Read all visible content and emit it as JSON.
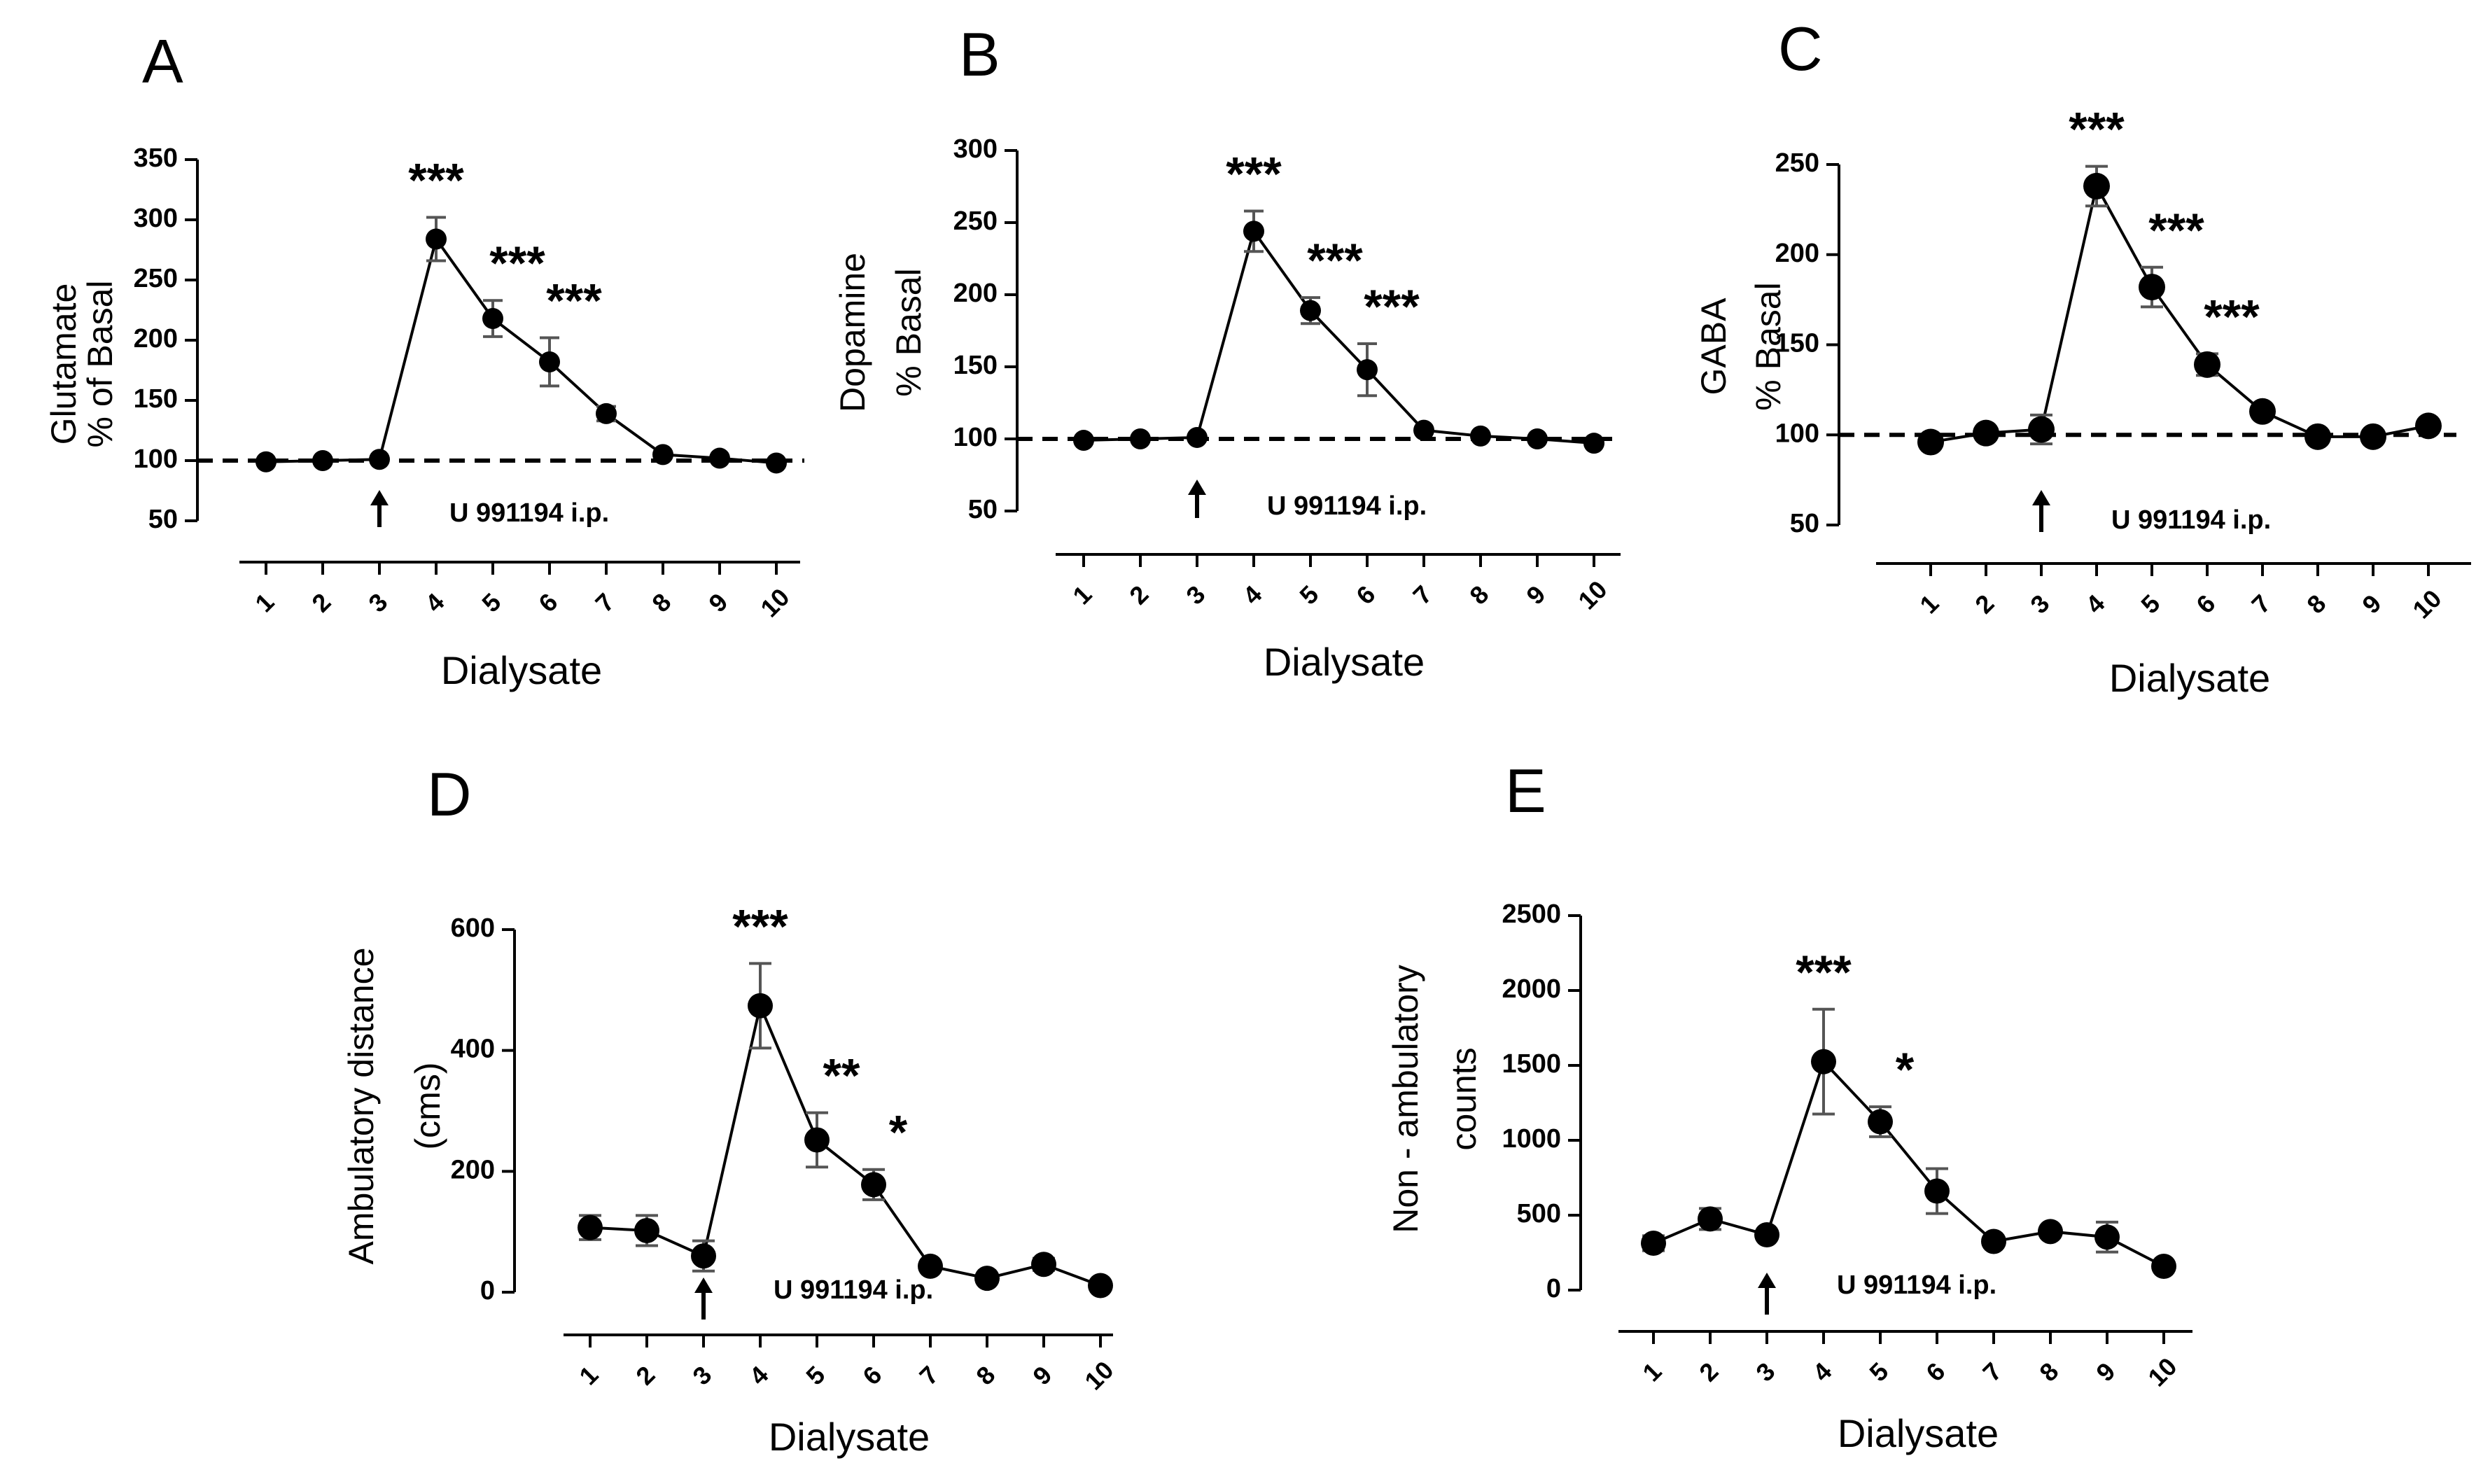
{
  "chart_data": [
    {
      "panel": "A",
      "type": "line",
      "ylabel_lines": [
        "Glutamate",
        "% of  Basal"
      ],
      "xlabel": "Dialysate",
      "categories": [
        "1",
        "2",
        "3",
        "4",
        "5",
        "6",
        "7",
        "8",
        "9",
        "10"
      ],
      "values": [
        99,
        100,
        101,
        284,
        218,
        182,
        139,
        105,
        102,
        98
      ],
      "errors": [
        0,
        0,
        0,
        18,
        15,
        20,
        6,
        0,
        0,
        0
      ],
      "ylim": [
        50,
        350
      ],
      "yticks": [
        "50",
        "100",
        "150",
        "200",
        "250",
        "300",
        "350"
      ],
      "baseline": 100,
      "significance": [
        {
          "x": 4,
          "label": "***"
        },
        {
          "x": 5,
          "label": "***"
        },
        {
          "x": 6,
          "label": "***"
        }
      ],
      "arrow_at": 3,
      "annotation": "U 991194 i.p."
    },
    {
      "panel": "B",
      "type": "line",
      "ylabel_lines": [
        "Dopamine",
        "% Basal"
      ],
      "xlabel": "Dialysate",
      "categories": [
        "1",
        "2",
        "3",
        "4",
        "5",
        "6",
        "7",
        "8",
        "9",
        "10"
      ],
      "values": [
        99,
        100,
        101,
        244,
        189,
        148,
        106,
        102,
        100,
        97
      ],
      "errors": [
        0,
        0,
        0,
        14,
        9,
        18,
        0,
        0,
        0,
        0
      ],
      "ylim": [
        50,
        300
      ],
      "yticks": [
        "50",
        "100",
        "150",
        "200",
        "250",
        "300"
      ],
      "baseline": 100,
      "significance": [
        {
          "x": 4,
          "label": "***"
        },
        {
          "x": 5,
          "label": "***"
        },
        {
          "x": 6,
          "label": "***"
        }
      ],
      "arrow_at": 3,
      "annotation": "U 991194 i.p."
    },
    {
      "panel": "C",
      "type": "line",
      "ylabel_lines": [
        "GABA",
        "% Basal"
      ],
      "xlabel": "Dialysate",
      "categories": [
        "1",
        "2",
        "3",
        "4",
        "5",
        "6",
        "7",
        "8",
        "9",
        "10"
      ],
      "values": [
        96,
        101,
        103,
        238,
        182,
        139,
        113,
        99,
        99,
        105
      ],
      "errors": [
        0,
        0,
        8,
        11,
        11,
        6,
        0,
        0,
        0,
        3
      ],
      "ylim": [
        50,
        250
      ],
      "yticks": [
        "50",
        "100",
        "150",
        "200",
        "250"
      ],
      "baseline": 100,
      "significance": [
        {
          "x": 4,
          "label": "***"
        },
        {
          "x": 5,
          "label": "***"
        },
        {
          "x": 6,
          "label": "***"
        }
      ],
      "arrow_at": 3,
      "annotation": "U 991194 i.p."
    },
    {
      "panel": "D",
      "type": "line",
      "ylabel_lines": [
        "Ambulatory distance",
        "(cms)"
      ],
      "xlabel": "Dialysate",
      "categories": [
        "1",
        "2",
        "3",
        "4",
        "5",
        "6",
        "7",
        "8",
        "9",
        "10"
      ],
      "values": [
        107,
        102,
        60,
        474,
        252,
        178,
        43,
        23,
        46,
        11
      ],
      "errors": [
        20,
        25,
        25,
        70,
        45,
        25,
        0,
        0,
        10,
        0
      ],
      "ylim": [
        0,
        600
      ],
      "yticks": [
        "0",
        "200",
        "400",
        "600"
      ],
      "baseline": null,
      "significance": [
        {
          "x": 4,
          "label": "***"
        },
        {
          "x": 5,
          "label": "**"
        },
        {
          "x": 6,
          "label": "*"
        }
      ],
      "arrow_at": 3,
      "annotation": "U 991194 i.p."
    },
    {
      "panel": "E",
      "type": "line",
      "ylabel_lines": [
        "Non - ambulatory",
        "counts"
      ],
      "xlabel": "Dialysate",
      "categories": [
        "1",
        "2",
        "3",
        "4",
        "5",
        "6",
        "7",
        "8",
        "9",
        "10"
      ],
      "values": [
        313,
        475,
        369,
        1525,
        1124,
        661,
        325,
        391,
        354,
        159
      ],
      "errors": [
        50,
        70,
        0,
        350,
        100,
        150,
        0,
        0,
        100,
        0
      ],
      "ylim": [
        0,
        2500
      ],
      "yticks": [
        "0",
        "500",
        "1000",
        "1500",
        "2000",
        "2500"
      ],
      "baseline": null,
      "significance": [
        {
          "x": 4,
          "label": "***"
        },
        {
          "x": 5,
          "label": "*"
        }
      ],
      "arrow_at": 3,
      "annotation": "U 991194 i.p."
    }
  ]
}
